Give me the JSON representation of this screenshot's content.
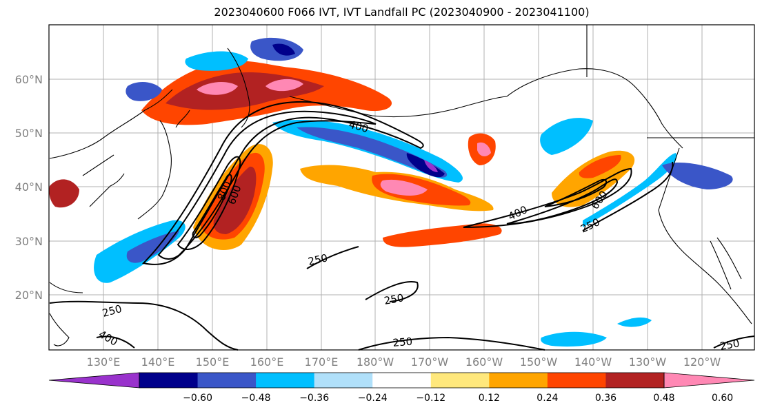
{
  "title": "2023040600 F066 IVT, IVT Landfall PC (2023040900 - 2023041100)",
  "lat_labels": [
    "60°N",
    "50°N",
    "40°N",
    "30°N",
    "20°N"
  ],
  "lon_labels": [
    "130°E",
    "140°E",
    "150°E",
    "160°E",
    "170°E",
    "180°W",
    "170°W",
    "160°W",
    "150°W",
    "140°W",
    "130°W",
    "120°W"
  ],
  "colorbar": {
    "colors": [
      "#9932cc",
      "#00008b",
      "#3a56c8",
      "#00bfff",
      "#b0e0fa",
      "#ffffff",
      "#ffe87c",
      "#ffa500",
      "#ff4500",
      "#b22222",
      "#ff88b4"
    ],
    "tick_labels": [
      "−0.60",
      "−0.48",
      "−0.36",
      "−0.24",
      "−0.12",
      "0.12",
      "0.24",
      "0.36",
      "0.48",
      "0.60"
    ]
  },
  "contour_labels": [
    "400",
    "800",
    "600",
    "250",
    "400",
    "600",
    "250",
    "250",
    "250",
    "250",
    "400",
    "250"
  ],
  "colors": {
    "land_outline": "#000000",
    "grid": "#b0b0b0",
    "tick_label": "#808080"
  }
}
